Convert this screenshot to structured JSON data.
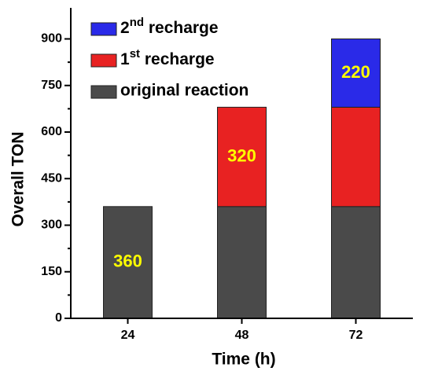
{
  "chart_data": {
    "type": "stacked-bar",
    "x_label": "Time (h)",
    "y_label": "Overall TON",
    "categories": [
      "24",
      "48",
      "72"
    ],
    "series": [
      {
        "name": "original reaction",
        "color": "#4a4a4a",
        "values": [
          360,
          360,
          360
        ]
      },
      {
        "name": "1st recharge",
        "color": "#e82222",
        "values": [
          null,
          320,
          320
        ]
      },
      {
        "name": "2nd recharge",
        "color": "#2a2ae8",
        "values": [
          null,
          null,
          220
        ]
      }
    ],
    "ylim": [
      0,
      1000
    ],
    "yticks": [
      0,
      150,
      300,
      450,
      600,
      750,
      900
    ],
    "label_color": "#ffff00",
    "legend": "top-left"
  }
}
